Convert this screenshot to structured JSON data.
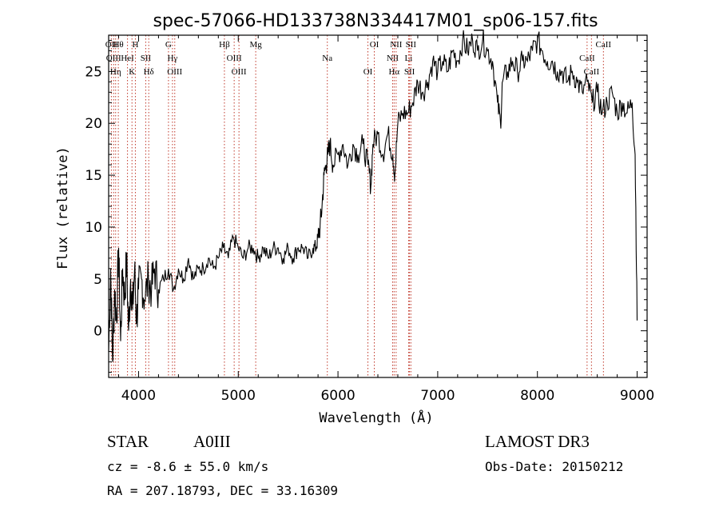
{
  "chart_data": {
    "type": "line",
    "title": "spec-57066-HD133738N334417M01_sp06-157.fits",
    "xlabel": "Wavelength (Å)",
    "ylabel": "Flux (relative)",
    "xlim": [
      3700,
      9100
    ],
    "ylim": [
      -4.5,
      28.5
    ],
    "xticks": [
      4000,
      5000,
      6000,
      7000,
      8000,
      9000
    ],
    "yticks": [
      0,
      5,
      10,
      15,
      20,
      25
    ],
    "grid": false,
    "series": [
      {
        "name": "spectrum",
        "x": [
          3700,
          3720,
          3740,
          3760,
          3780,
          3800,
          3820,
          3840,
          3860,
          3880,
          3900,
          3920,
          3940,
          3960,
          3980,
          4000,
          4030,
          4060,
          4100,
          4130,
          4160,
          4200,
          4250,
          4300,
          4350,
          4400,
          4450,
          4500,
          4550,
          4600,
          4650,
          4700,
          4750,
          4800,
          4850,
          4900,
          4950,
          5000,
          5050,
          5100,
          5150,
          5200,
          5250,
          5300,
          5350,
          5400,
          5450,
          5500,
          5550,
          5600,
          5650,
          5700,
          5750,
          5780,
          5800,
          5820,
          5840,
          5860,
          5880,
          5900,
          5920,
          5950,
          6000,
          6050,
          6100,
          6150,
          6200,
          6250,
          6300,
          6330,
          6350,
          6400,
          6450,
          6500,
          6550,
          6570,
          6600,
          6650,
          6700,
          6750,
          6800,
          6850,
          6900,
          6950,
          7000,
          7050,
          7100,
          7150,
          7200,
          7250,
          7300,
          7350,
          7400,
          7450,
          7500,
          7550,
          7600,
          7630,
          7650,
          7700,
          7750,
          7800,
          7850,
          7900,
          7950,
          8000,
          8050,
          8100,
          8150,
          8200,
          8250,
          8300,
          8350,
          8400,
          8450,
          8500,
          8550,
          8600,
          8650,
          8700,
          8750,
          8800,
          8850,
          8900,
          8950,
          8980,
          9000
        ],
        "y": [
          -2,
          6,
          -3,
          4,
          1,
          8,
          -1,
          6,
          3,
          7,
          0,
          5,
          2,
          6,
          1,
          4,
          5,
          3,
          5,
          4,
          6,
          4,
          5,
          6,
          4,
          6,
          5,
          7,
          5,
          6,
          6,
          7,
          6,
          7,
          8,
          7,
          9,
          8,
          7,
          8,
          8,
          7,
          8,
          7,
          8,
          8,
          7,
          8,
          7,
          8,
          8,
          7,
          8,
          8,
          9,
          10,
          12,
          15,
          16,
          17,
          18,
          16,
          17,
          18,
          16,
          18,
          17,
          18,
          16,
          14,
          18,
          19,
          17,
          19,
          17,
          15,
          20,
          21,
          21,
          22,
          24,
          23,
          24,
          26,
          25,
          26,
          25,
          27,
          26,
          28,
          27,
          28,
          27,
          28,
          27,
          26,
          22,
          20,
          24,
          25,
          26,
          25,
          26,
          26,
          27,
          28,
          27,
          26,
          26,
          25,
          25,
          24,
          25,
          24,
          23,
          24,
          22,
          23,
          21,
          22,
          23,
          21,
          22,
          21,
          22,
          17,
          1
        ]
      }
    ],
    "line_markers": [
      {
        "wavelength": 3727,
        "label": "OII"
      },
      {
        "wavelength": 3750,
        "label": "OIII"
      },
      {
        "wavelength": 3770,
        "label": "Hη"
      },
      {
        "wavelength": 3797,
        "label": "Hθ"
      },
      {
        "wavelength": 3889,
        "label": "HeI"
      },
      {
        "wavelength": 3934,
        "label": "K"
      },
      {
        "wavelength": 3968,
        "label": "H"
      },
      {
        "wavelength": 4072,
        "label": "SII"
      },
      {
        "wavelength": 4102,
        "label": "Hδ"
      },
      {
        "wavelength": 4300,
        "label": "G"
      },
      {
        "wavelength": 4340,
        "label": "Hγ"
      },
      {
        "wavelength": 4363,
        "label": "OIII"
      },
      {
        "wavelength": 4861,
        "label": "Hβ"
      },
      {
        "wavelength": 4959,
        "label": "OIII"
      },
      {
        "wavelength": 5007,
        "label": "OIII"
      },
      {
        "wavelength": 5175,
        "label": "Mg"
      },
      {
        "wavelength": 5893,
        "label": "Na"
      },
      {
        "wavelength": 6300,
        "label": "OI"
      },
      {
        "wavelength": 6364,
        "label": "OI"
      },
      {
        "wavelength": 6548,
        "label": "NII"
      },
      {
        "wavelength": 6563,
        "label": "Hα"
      },
      {
        "wavelength": 6583,
        "label": "NII"
      },
      {
        "wavelength": 6708,
        "label": "Li"
      },
      {
        "wavelength": 6717,
        "label": "SII"
      },
      {
        "wavelength": 6731,
        "label": "SII"
      },
      {
        "wavelength": 8498,
        "label": "CaII"
      },
      {
        "wavelength": 8542,
        "label": "CaII"
      },
      {
        "wavelength": 8662,
        "label": "CaII"
      }
    ]
  },
  "info": {
    "object_class": "STAR",
    "subclass": "A0III",
    "survey": "LAMOST DR3",
    "cz": "cz = -8.6 ± 55.0 km/s",
    "obs_date": "Obs-Date: 20150212",
    "coords": "RA = 207.18793, DEC =  33.16309"
  }
}
